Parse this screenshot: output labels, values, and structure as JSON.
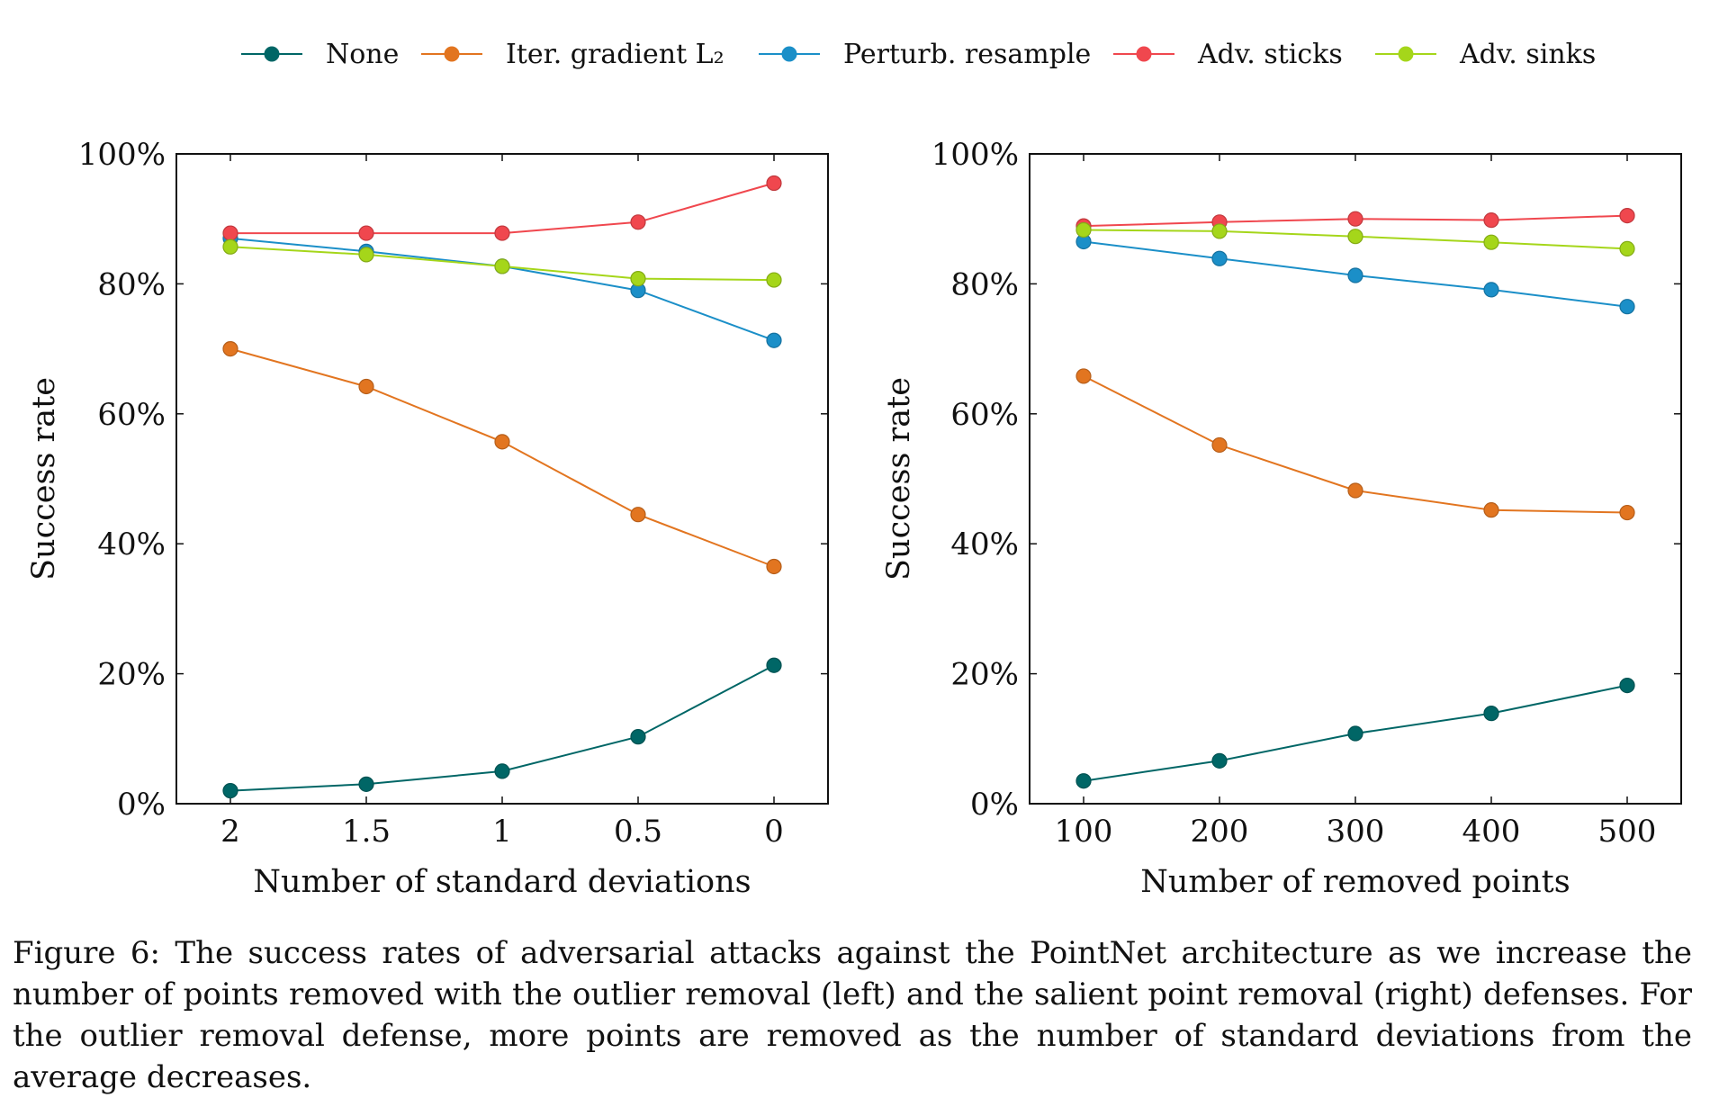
{
  "legend": {
    "entries": [
      {
        "label": "None",
        "color": "#006666"
      },
      {
        "label": "Iter. gradient L₂",
        "color": "#e27520"
      },
      {
        "label": "Perturb. resample",
        "color": "#1b8fc8"
      },
      {
        "label": "Adv. sticks",
        "color": "#f0474e"
      },
      {
        "label": "Adv. sinks",
        "color": "#a5d61a"
      }
    ]
  },
  "chart_data": [
    {
      "type": "line",
      "xlabel": "Number of standard deviations",
      "ylabel": "Success rate",
      "x": [
        "2",
        "1.5",
        "1",
        "0.5",
        "0"
      ],
      "ylim": [
        0,
        100
      ],
      "yticks": [
        "0%",
        "20%",
        "40%",
        "60%",
        "80%",
        "100%"
      ],
      "grid": false,
      "series": [
        {
          "name": "None",
          "values": [
            2.0,
            3.0,
            5.0,
            10.3,
            21.3
          ]
        },
        {
          "name": "Iter. gradient L₂",
          "values": [
            70.0,
            64.2,
            55.7,
            44.5,
            36.5
          ]
        },
        {
          "name": "Perturb. resample",
          "values": [
            87.0,
            85.0,
            82.7,
            79.0,
            71.3
          ]
        },
        {
          "name": "Adv. sticks",
          "values": [
            87.8,
            87.8,
            87.8,
            89.5,
            95.5
          ]
        },
        {
          "name": "Adv. sinks",
          "values": [
            85.7,
            84.5,
            82.7,
            80.8,
            80.6
          ]
        }
      ]
    },
    {
      "type": "line",
      "xlabel": "Number of removed points",
      "ylabel": "Success rate",
      "x": [
        "100",
        "200",
        "300",
        "400",
        "500"
      ],
      "ylim": [
        0,
        100
      ],
      "yticks": [
        "0%",
        "20%",
        "40%",
        "60%",
        "80%",
        "100%"
      ],
      "grid": false,
      "series": [
        {
          "name": "None",
          "values": [
            3.5,
            6.6,
            10.8,
            13.9,
            18.2
          ]
        },
        {
          "name": "Iter. gradient L₂",
          "values": [
            65.8,
            55.2,
            48.2,
            45.2,
            44.8
          ]
        },
        {
          "name": "Perturb. resample",
          "values": [
            86.5,
            83.9,
            81.3,
            79.1,
            76.5
          ]
        },
        {
          "name": "Adv. sticks",
          "values": [
            88.9,
            89.5,
            90.0,
            89.8,
            90.5
          ]
        },
        {
          "name": "Adv. sinks",
          "values": [
            88.3,
            88.1,
            87.3,
            86.4,
            85.4
          ]
        }
      ]
    }
  ],
  "caption": "Figure 6: The success rates of adversarial attacks against the PointNet architecture as we increase the number of points removed with the outlier removal (left) and the salient point removal (right) defenses. For the outlier removal defense, more points are removed as the number of standard deviations from the average decreases."
}
